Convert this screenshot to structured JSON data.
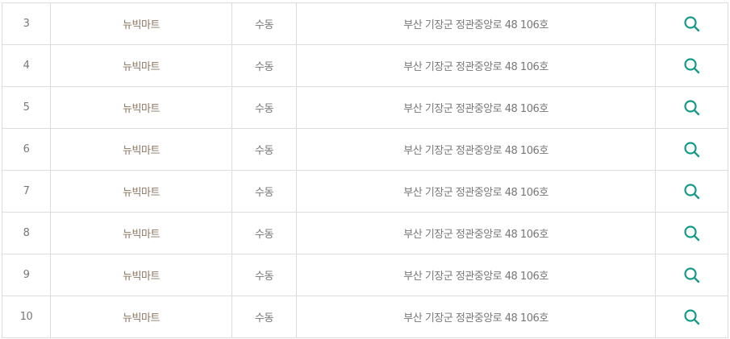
{
  "accent_color": "#16998a",
  "rows": [
    {
      "no": "3",
      "name": "뉴빅마트",
      "district": "수동",
      "address": "부산 기장군 정관중앙로 48 106호",
      "action_icon": "search-icon"
    },
    {
      "no": "4",
      "name": "뉴빅마트",
      "district": "수동",
      "address": "부산 기장군 정관중앙로 48 106호",
      "action_icon": "search-icon"
    },
    {
      "no": "5",
      "name": "뉴빅마트",
      "district": "수동",
      "address": "부산 기장군 정관중앙로 48 106호",
      "action_icon": "search-icon"
    },
    {
      "no": "6",
      "name": "뉴빅마트",
      "district": "수동",
      "address": "부산 기장군 정관중앙로 48 106호",
      "action_icon": "search-icon"
    },
    {
      "no": "7",
      "name": "뉴빅마트",
      "district": "수동",
      "address": "부산 기장군 정관중앙로 48 106호",
      "action_icon": "search-icon"
    },
    {
      "no": "8",
      "name": "뉴빅마트",
      "district": "수동",
      "address": "부산 기장군 정관중앙로 48 106호",
      "action_icon": "search-icon"
    },
    {
      "no": "9",
      "name": "뉴빅마트",
      "district": "수동",
      "address": "부산 기장군 정관중앙로 48 106호",
      "action_icon": "search-icon"
    },
    {
      "no": "10",
      "name": "뉴빅마트",
      "district": "수동",
      "address": "부산 기장군 정관중앙로 48 106호",
      "action_icon": "search-icon"
    }
  ]
}
